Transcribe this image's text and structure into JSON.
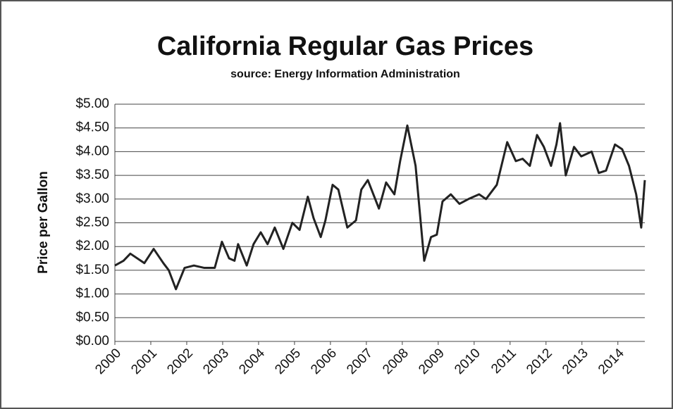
{
  "chart_data": {
    "type": "line",
    "title": "California Regular Gas Prices",
    "subtitle": "source:  Energy Information Administration",
    "y_label": "Price per Gallon",
    "x": [
      2000,
      2000.24,
      2000.43,
      2000.82,
      2001.08,
      2001.35,
      2001.5,
      2001.7,
      2001.94,
      2002.2,
      2002.49,
      2002.78,
      2002.98,
      2003.18,
      2003.33,
      2003.43,
      2003.67,
      2003.86,
      2004.06,
      2004.25,
      2004.45,
      2004.69,
      2004.94,
      2005.14,
      2005.37,
      2005.53,
      2005.73,
      2005.86,
      2006.06,
      2006.22,
      2006.47,
      2006.71,
      2006.86,
      2007.04,
      2007.35,
      2007.55,
      2007.78,
      2007.94,
      2008.14,
      2008.37,
      2008.61,
      2008.8,
      2008.96,
      2009.12,
      2009.35,
      2009.59,
      2009.84,
      2010.14,
      2010.33,
      2010.63,
      2010.92,
      2011.16,
      2011.35,
      2011.55,
      2011.75,
      2011.94,
      2012.14,
      2012.29,
      2012.39,
      2012.55,
      2012.78,
      2012.98,
      2013.27,
      2013.47,
      2013.67,
      2013.92,
      2014.12,
      2014.31,
      2014.51,
      2014.65,
      2014.75
    ],
    "series": [
      {
        "name": "Regular",
        "color": "#222222",
        "values": [
          1.6,
          1.7,
          1.85,
          1.65,
          1.95,
          1.65,
          1.5,
          1.1,
          1.55,
          1.6,
          1.55,
          1.55,
          2.1,
          1.75,
          1.7,
          2.05,
          1.6,
          2.05,
          2.3,
          2.05,
          2.4,
          1.95,
          2.5,
          2.35,
          3.05,
          2.6,
          2.2,
          2.55,
          3.3,
          3.2,
          2.4,
          2.55,
          3.2,
          3.4,
          2.8,
          3.35,
          3.1,
          3.8,
          4.55,
          3.7,
          1.7,
          2.2,
          2.25,
          2.95,
          3.1,
          2.9,
          3.0,
          3.1,
          3.0,
          3.3,
          4.2,
          3.8,
          3.85,
          3.7,
          4.35,
          4.1,
          3.7,
          4.15,
          4.6,
          3.5,
          4.1,
          3.9,
          4.0,
          3.55,
          3.6,
          4.15,
          4.05,
          3.7,
          3.1,
          2.4,
          3.4
        ]
      }
    ],
    "xlim": [
      2000,
      2014.75
    ],
    "xticks": [
      2000,
      2001,
      2002,
      2003,
      2004,
      2005,
      2006,
      2007,
      2008,
      2009,
      2010,
      2011,
      2012,
      2013,
      2014
    ],
    "ylim": [
      0,
      5
    ],
    "yticks": [
      {
        "value": 0,
        "label": "$0.00"
      },
      {
        "value": 0.5,
        "label": "$0.50"
      },
      {
        "value": 1,
        "label": "$1.00"
      },
      {
        "value": 1.5,
        "label": "$1.50"
      },
      {
        "value": 2,
        "label": "$2.00"
      },
      {
        "value": 2.5,
        "label": "$2.50"
      },
      {
        "value": 3,
        "label": "$3.00"
      },
      {
        "value": 3.5,
        "label": "$3.50"
      },
      {
        "value": 4,
        "label": "$4.00"
      },
      {
        "value": 4.5,
        "label": "$4.50"
      },
      {
        "value": 5,
        "label": "$5.00"
      }
    ],
    "grid": true
  }
}
